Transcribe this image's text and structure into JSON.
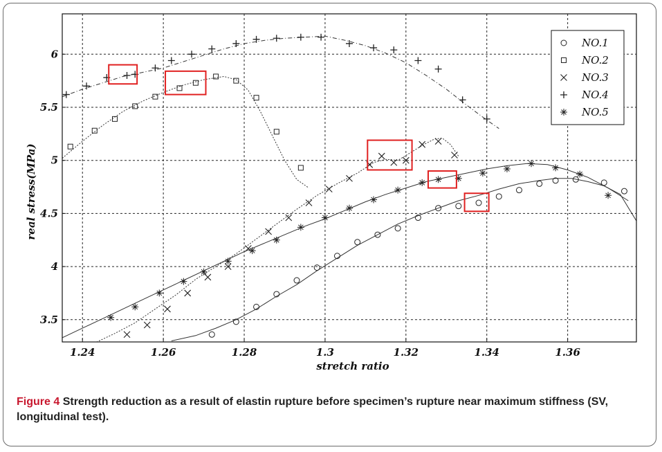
{
  "chart_data": {
    "type": "line",
    "xlabel": "stretch ratio",
    "ylabel": "real stress(MPa)",
    "xlim": [
      1.235,
      1.377
    ],
    "ylim": [
      3.29,
      6.38
    ],
    "x_ticks": [
      1.24,
      1.26,
      1.28,
      1.3,
      1.32,
      1.34,
      1.36
    ],
    "x_tick_labels": [
      "1.24",
      "1.26",
      "1.28",
      "1.3",
      "1.32",
      "1.34",
      "1.36"
    ],
    "y_ticks": [
      3.5,
      4,
      4.5,
      5,
      5.5,
      6
    ],
    "y_tick_labels": [
      "3.5",
      "4",
      "4.5",
      "5",
      "5.5",
      "6"
    ],
    "grid": true,
    "legend_position": "top-right",
    "series": [
      {
        "name": "NO.1",
        "marker": "o",
        "x": [
          1.262,
          1.268,
          1.273,
          1.278,
          1.283,
          1.288,
          1.293,
          1.298,
          1.303,
          1.308,
          1.313,
          1.318,
          1.323,
          1.328,
          1.333,
          1.338,
          1.343,
          1.348,
          1.353,
          1.357,
          1.361,
          1.365,
          1.369,
          1.373,
          1.377
        ],
        "y": [
          3.3,
          3.35,
          3.42,
          3.5,
          3.6,
          3.72,
          3.83,
          3.96,
          4.08,
          4.2,
          4.3,
          4.4,
          4.48,
          4.55,
          4.62,
          4.67,
          4.73,
          4.78,
          4.81,
          4.83,
          4.83,
          4.8,
          4.76,
          4.68,
          4.43
        ],
        "markers_x": [
          1.272,
          1.278,
          1.283,
          1.288,
          1.293,
          1.298,
          1.303,
          1.308,
          1.313,
          1.318,
          1.323,
          1.328,
          1.333,
          1.338,
          1.343,
          1.348,
          1.353,
          1.357,
          1.362,
          1.369,
          1.374
        ],
        "markers_y": [
          3.36,
          3.48,
          3.62,
          3.74,
          3.87,
          3.99,
          4.1,
          4.23,
          4.3,
          4.36,
          4.46,
          4.55,
          4.57,
          4.6,
          4.66,
          4.72,
          4.78,
          4.81,
          4.82,
          4.79,
          4.71
        ]
      },
      {
        "name": "NO.2",
        "marker": "s",
        "x": [
          1.235,
          1.24,
          1.245,
          1.25,
          1.255,
          1.26,
          1.265,
          1.27,
          1.275,
          1.278,
          1.281,
          1.284,
          1.287,
          1.29,
          1.293,
          1.296
        ],
        "y": [
          5.02,
          5.18,
          5.33,
          5.46,
          5.56,
          5.64,
          5.71,
          5.76,
          5.79,
          5.76,
          5.66,
          5.46,
          5.23,
          5.0,
          4.82,
          4.74
        ],
        "markers_x": [
          1.237,
          1.243,
          1.248,
          1.253,
          1.258,
          1.264,
          1.268,
          1.273,
          1.278,
          1.283,
          1.288,
          1.294
        ],
        "markers_y": [
          5.13,
          5.28,
          5.39,
          5.51,
          5.6,
          5.68,
          5.73,
          5.79,
          5.75,
          5.59,
          5.27,
          4.93
        ]
      },
      {
        "name": "NO.3",
        "marker": "x",
        "x": [
          1.237,
          1.243,
          1.248,
          1.253,
          1.258,
          1.263,
          1.268,
          1.273,
          1.278,
          1.283,
          1.288,
          1.293,
          1.298,
          1.303,
          1.308,
          1.312,
          1.315,
          1.318,
          1.321,
          1.324,
          1.327,
          1.329,
          1.331,
          1.333
        ],
        "y": [
          3.2,
          3.28,
          3.37,
          3.47,
          3.6,
          3.73,
          3.88,
          4.0,
          4.12,
          4.26,
          4.4,
          4.54,
          4.67,
          4.78,
          4.88,
          4.98,
          5.01,
          5.0,
          5.07,
          5.14,
          5.2,
          5.21,
          5.15,
          5.04
        ],
        "markers_x": [
          1.251,
          1.256,
          1.261,
          1.266,
          1.271,
          1.276,
          1.281,
          1.286,
          1.291,
          1.296,
          1.301,
          1.306,
          1.311,
          1.314,
          1.317,
          1.32,
          1.324,
          1.328,
          1.332
        ],
        "markers_y": [
          3.36,
          3.45,
          3.6,
          3.75,
          3.9,
          4.0,
          4.17,
          4.33,
          4.46,
          4.6,
          4.73,
          4.83,
          4.96,
          5.04,
          4.98,
          5.0,
          5.15,
          5.18,
          5.05
        ]
      },
      {
        "name": "NO.4",
        "marker": "+",
        "x": [
          1.235,
          1.24,
          1.245,
          1.25,
          1.255,
          1.26,
          1.265,
          1.27,
          1.275,
          1.28,
          1.285,
          1.29,
          1.295,
          1.3,
          1.305,
          1.31,
          1.315,
          1.32,
          1.325,
          1.33,
          1.335,
          1.34,
          1.343
        ],
        "y": [
          5.6,
          5.67,
          5.73,
          5.79,
          5.83,
          5.87,
          5.93,
          5.99,
          6.05,
          6.1,
          6.13,
          6.15,
          6.16,
          6.17,
          6.13,
          6.08,
          6.01,
          5.92,
          5.8,
          5.67,
          5.52,
          5.38,
          5.3
        ],
        "markers_x": [
          1.236,
          1.241,
          1.246,
          1.251,
          1.253,
          1.258,
          1.262,
          1.267,
          1.272,
          1.278,
          1.283,
          1.288,
          1.294,
          1.299,
          1.306,
          1.312,
          1.317,
          1.323,
          1.328,
          1.334,
          1.34
        ],
        "markers_y": [
          5.62,
          5.7,
          5.78,
          5.8,
          5.81,
          5.87,
          5.94,
          6.0,
          6.05,
          6.1,
          6.14,
          6.15,
          6.16,
          6.16,
          6.1,
          6.06,
          6.04,
          5.94,
          5.86,
          5.57,
          5.39
        ]
      },
      {
        "name": "NO.5",
        "marker": "*",
        "x": [
          1.235,
          1.24,
          1.245,
          1.25,
          1.255,
          1.26,
          1.265,
          1.27,
          1.275,
          1.28,
          1.285,
          1.29,
          1.295,
          1.3,
          1.305,
          1.31,
          1.315,
          1.32,
          1.325,
          1.33,
          1.335,
          1.34,
          1.345,
          1.35,
          1.355,
          1.36,
          1.365,
          1.37,
          1.375
        ],
        "y": [
          3.33,
          3.42,
          3.51,
          3.6,
          3.69,
          3.78,
          3.87,
          3.96,
          4.05,
          4.14,
          4.22,
          4.3,
          4.38,
          4.45,
          4.53,
          4.61,
          4.68,
          4.74,
          4.8,
          4.84,
          4.88,
          4.92,
          4.95,
          4.97,
          4.96,
          4.91,
          4.84,
          4.74,
          4.62
        ],
        "markers_x": [
          1.247,
          1.253,
          1.259,
          1.265,
          1.27,
          1.276,
          1.282,
          1.288,
          1.294,
          1.3,
          1.306,
          1.312,
          1.318,
          1.324,
          1.328,
          1.333,
          1.339,
          1.345,
          1.351,
          1.357,
          1.363,
          1.37
        ],
        "markers_y": [
          3.52,
          3.62,
          3.75,
          3.86,
          3.95,
          4.05,
          4.15,
          4.25,
          4.37,
          4.46,
          4.55,
          4.63,
          4.72,
          4.79,
          4.82,
          4.83,
          4.88,
          4.92,
          4.97,
          4.93,
          4.87,
          4.67
        ]
      }
    ],
    "highlight_boxes": [
      {
        "x": [
          1.2465,
          1.2535
        ],
        "y": [
          5.72,
          5.9
        ]
      },
      {
        "x": [
          1.2605,
          1.2705
        ],
        "y": [
          5.62,
          5.84
        ]
      },
      {
        "x": [
          1.3105,
          1.3215
        ],
        "y": [
          4.91,
          5.19
        ]
      },
      {
        "x": [
          1.3255,
          1.3325
        ],
        "y": [
          4.74,
          4.9
        ]
      },
      {
        "x": [
          1.3345,
          1.3405
        ],
        "y": [
          4.52,
          4.69
        ]
      }
    ],
    "highlight_color": "#e02020"
  },
  "caption": {
    "label": "Figure 4",
    "text": "Strength reduction as a result of elastin rupture before specimen’s rupture near maximum stiffness (SV, longitudinal test)."
  }
}
